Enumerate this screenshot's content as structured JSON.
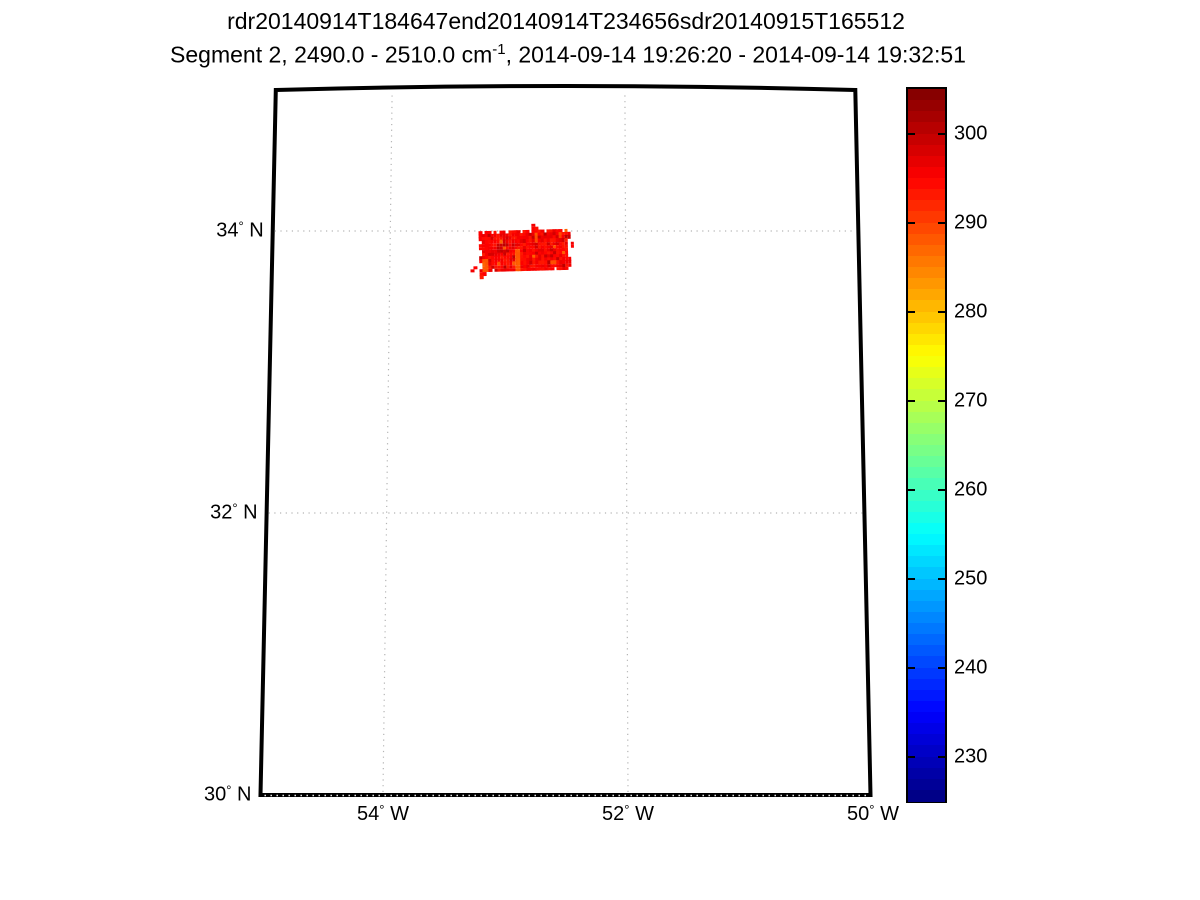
{
  "figure": {
    "title": "rdr20140914T184647end20140914T234656sdr20140915T165512",
    "subtitle_prefix": "Segment 2, 2490.0 - 2510.0 cm",
    "subtitle_sup": "-1",
    "subtitle_suffix": ", 2014-09-14 19:26:20 - 2014-09-14 19:32:51",
    "background_color": "#ffffff"
  },
  "chart_data": {
    "type": "heatmap",
    "title": "rdr20140914T184647end20140914T234656sdr20140915T165512",
    "subtitle": "Segment 2, 2490.0 - 2510.0 cm^-1, 2014-09-14 19:26:20 - 2014-09-14 19:32:51",
    "projection": "regional lat/lon map, meridians converge slightly toward top",
    "x_axis": {
      "ticks": [
        54,
        52,
        50
      ],
      "suffix": "W",
      "range_deg_w": [
        55.0,
        50.0
      ]
    },
    "y_axis": {
      "ticks": [
        34,
        32,
        30
      ],
      "suffix": "N",
      "range_deg_n": [
        30.0,
        35.0
      ]
    },
    "grid": {
      "on": true,
      "style": "dotted",
      "color": "#b4b4b4"
    },
    "colorbar": {
      "range": [
        225,
        305
      ],
      "ticks": [
        300,
        290,
        280,
        270,
        260,
        250,
        240,
        230
      ],
      "bands": 64,
      "colormap": "jet",
      "position": "right"
    },
    "swath": {
      "description": "satellite brightness temperature swath (mostly ~293-297 K, red)",
      "lon_w_range": [
        52.47,
        53.25
      ],
      "lat_range": [
        33.72,
        34.01
      ],
      "base_value_k": 295,
      "noise_k": 2,
      "rows": 13,
      "cols": 31,
      "seed": 11,
      "rotation_deg": -1.5,
      "hot_spots": [
        {
          "c0": 12,
          "c1": 13,
          "r0": 6,
          "r1": 12,
          "value": 288
        },
        {
          "c0": 1,
          "c1": 2,
          "r0": 9,
          "r1": 12,
          "value": 288
        },
        {
          "c0": 19,
          "c1": 19,
          "r0": 1,
          "r1": 3,
          "value": 289
        },
        {
          "c0": 27,
          "c1": 27,
          "r0": 1,
          "r1": 2,
          "value": 290
        },
        {
          "c0": 6,
          "c1": 7,
          "r0": 4,
          "r1": 6,
          "value": 299
        }
      ],
      "extra_cells": [
        {
          "c": 18,
          "r": -1,
          "v": 295
        },
        {
          "c": 19,
          "r": -1,
          "v": 294
        },
        {
          "c": 18,
          "r": -2,
          "v": 296
        },
        {
          "c": 0,
          "r": 13,
          "v": 294
        },
        {
          "c": 1,
          "r": 13,
          "v": 295
        },
        {
          "c": 0,
          "r": 14,
          "v": 293
        },
        {
          "c": -2,
          "r": 11,
          "v": 295
        },
        {
          "c": -3,
          "r": 12,
          "v": 296
        },
        {
          "c": 31,
          "r": 4,
          "v": 296
        },
        {
          "c": 31,
          "r": 5,
          "v": 295
        }
      ]
    },
    "style": {
      "border_color": "#000000",
      "grid_color": "#b4b4b4",
      "text_color": "#000000",
      "background": "#ffffff"
    }
  }
}
